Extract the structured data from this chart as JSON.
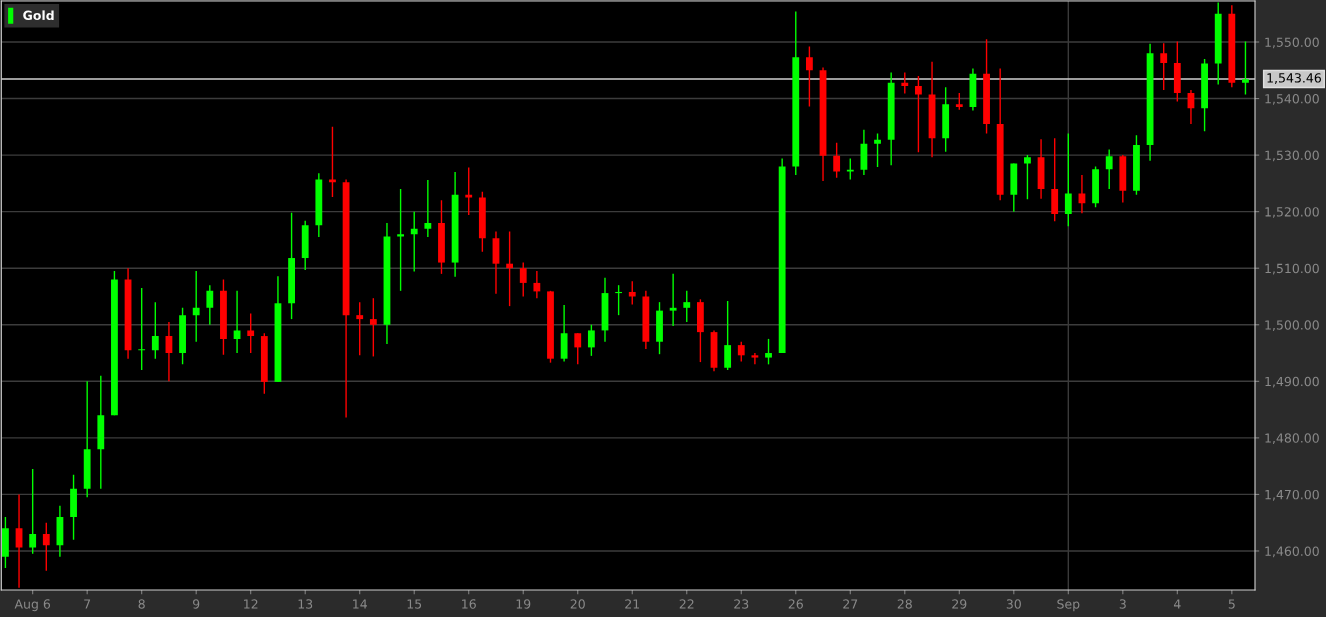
{
  "chart_data": {
    "type": "candlestick",
    "categories": [
      null,
      null,
      "Aug 6",
      null,
      null,
      null,
      "7",
      null,
      null,
      null,
      "8",
      null,
      null,
      null,
      "9",
      null,
      null,
      null,
      "12",
      null,
      null,
      null,
      "13",
      null,
      null,
      null,
      "14",
      null,
      null,
      null,
      "15",
      null,
      null,
      null,
      "16",
      null,
      null,
      null,
      "19",
      null,
      null,
      null,
      "20",
      null,
      null,
      null,
      "21",
      null,
      null,
      null,
      "22",
      null,
      null,
      null,
      "23",
      null,
      null,
      null,
      "26",
      null,
      null,
      null,
      "27",
      null,
      null,
      null,
      "28",
      null,
      null,
      null,
      "29",
      null,
      null,
      null,
      "30",
      null,
      null,
      null,
      "Sep",
      null,
      null,
      null,
      "3",
      null,
      null,
      null,
      "4",
      null,
      null,
      null,
      "5",
      null
    ],
    "series": [
      {
        "name": "Gold",
        "color": "#00ff00",
        "ohlc": [
          [
            1459,
            1466,
            1457,
            1464
          ],
          [
            1464,
            1470,
            1453.5,
            1460.6
          ],
          [
            1460.6,
            1474.5,
            1459.5,
            1463
          ],
          [
            1463,
            1465,
            1456.5,
            1461
          ],
          [
            1461,
            1468,
            1459,
            1466
          ],
          [
            1466,
            1473.5,
            1462,
            1471
          ],
          [
            1471,
            1490,
            1469.5,
            1478
          ],
          [
            1478,
            1491,
            1471,
            1484
          ],
          [
            1484,
            1509.5,
            1484,
            1508
          ],
          [
            1508,
            1510,
            1494,
            1495.5
          ],
          [
            1495.5,
            1506.5,
            1492,
            1495.5
          ],
          [
            1495.5,
            1504,
            1494,
            1498
          ],
          [
            1498,
            1500.5,
            1490,
            1495
          ],
          [
            1495,
            1503,
            1493,
            1501.7
          ],
          [
            1501.7,
            1509.5,
            1497,
            1503
          ],
          [
            1503,
            1507,
            1500,
            1506
          ],
          [
            1506,
            1508,
            1494.7,
            1497.5
          ],
          [
            1497.5,
            1506,
            1495,
            1499
          ],
          [
            1499,
            1502,
            1495,
            1498
          ],
          [
            1498,
            1498.5,
            1487.8,
            1489.9
          ],
          [
            1489.9,
            1508.6,
            1489.9,
            1503.8
          ],
          [
            1503.8,
            1519.8,
            1501,
            1511.8
          ],
          [
            1511.8,
            1518.4,
            1509.7,
            1517.6
          ],
          [
            1517.6,
            1526.8,
            1515.5,
            1525.7
          ],
          [
            1525.7,
            1535,
            1522.6,
            1525.2
          ],
          [
            1525.2,
            1525.7,
            1483.6,
            1501.7
          ],
          [
            1501.7,
            1504,
            1494.6,
            1501
          ],
          [
            1501,
            1504.7,
            1494.4,
            1500
          ],
          [
            1500,
            1518,
            1496.6,
            1515.6
          ],
          [
            1515.6,
            1524,
            1506,
            1516
          ],
          [
            1516,
            1520,
            1509.4,
            1517
          ],
          [
            1517,
            1525.6,
            1515.5,
            1518
          ],
          [
            1518,
            1522,
            1509,
            1511
          ],
          [
            1511,
            1527,
            1508.5,
            1523
          ],
          [
            1523,
            1527.8,
            1519.4,
            1522.5
          ],
          [
            1522.5,
            1523.5,
            1512.9,
            1515.3
          ],
          [
            1515.3,
            1516.5,
            1505.5,
            1510.8
          ],
          [
            1510.8,
            1516.5,
            1503.3,
            1510
          ],
          [
            1510,
            1511,
            1505,
            1507.4
          ],
          [
            1507.4,
            1509.5,
            1504.7,
            1505.9
          ],
          [
            1505.9,
            1506,
            1493.3,
            1494
          ],
          [
            1494,
            1503.5,
            1493.5,
            1498.5
          ],
          [
            1498.5,
            1498.5,
            1493,
            1496
          ],
          [
            1496,
            1500,
            1494.5,
            1499
          ],
          [
            1499,
            1508.3,
            1497,
            1505.6
          ],
          [
            1505.6,
            1507,
            1501.7,
            1505.8
          ],
          [
            1505.8,
            1507.7,
            1503.6,
            1505
          ],
          [
            1505,
            1506,
            1495.7,
            1497
          ],
          [
            1497,
            1504,
            1494.8,
            1502.5
          ],
          [
            1502.5,
            1509,
            1499.8,
            1503
          ],
          [
            1503,
            1506,
            1500.5,
            1504
          ],
          [
            1504,
            1504.5,
            1493.4,
            1498.7
          ],
          [
            1498.7,
            1499,
            1491.8,
            1492.4
          ],
          [
            1492.4,
            1504.2,
            1492,
            1496.4
          ],
          [
            1496.4,
            1497,
            1493.5,
            1494.6
          ],
          [
            1494.6,
            1495,
            1493,
            1494.2
          ],
          [
            1494.2,
            1497.5,
            1493,
            1495
          ],
          [
            1495,
            1529.4,
            1495,
            1528
          ],
          [
            1528,
            1555.4,
            1526.5,
            1547.3
          ],
          [
            1547.3,
            1549.2,
            1538.6,
            1545
          ],
          [
            1545,
            1545.5,
            1525.4,
            1529.9
          ],
          [
            1529.9,
            1532.2,
            1526,
            1527.1
          ],
          [
            1527.1,
            1529.4,
            1525.7,
            1527.4
          ],
          [
            1527.4,
            1534.5,
            1526.5,
            1532
          ],
          [
            1532,
            1533.8,
            1527.9,
            1532.7
          ],
          [
            1532.7,
            1544.6,
            1528.2,
            1542.8
          ],
          [
            1542.8,
            1544.6,
            1540.9,
            1542.2
          ],
          [
            1542.2,
            1544,
            1530.5,
            1540.7
          ],
          [
            1540.7,
            1546.5,
            1529.6,
            1533
          ],
          [
            1533,
            1542,
            1530.6,
            1539
          ],
          [
            1539,
            1541,
            1538,
            1538.5
          ],
          [
            1538.5,
            1545.3,
            1537.9,
            1544.4
          ],
          [
            1544.4,
            1550.5,
            1533.8,
            1535.5
          ],
          [
            1535.5,
            1545.3,
            1522,
            1523
          ],
          [
            1523,
            1528.5,
            1520,
            1528.5
          ],
          [
            1528.5,
            1530,
            1522.2,
            1529.6
          ],
          [
            1529.6,
            1532.8,
            1522.3,
            1524
          ],
          [
            1524,
            1533,
            1518.3,
            1519.6
          ],
          [
            1519.6,
            1533.8,
            1517.4,
            1523.2
          ],
          [
            1523.2,
            1526.5,
            1519.7,
            1521.5
          ],
          [
            1521.5,
            1528,
            1520.8,
            1527.5
          ],
          [
            1527.5,
            1531,
            1524,
            1529.8
          ],
          [
            1529.8,
            1530,
            1521.6,
            1523.7
          ],
          [
            1523.7,
            1533.5,
            1523,
            1531.8
          ],
          [
            1531.8,
            1549.7,
            1529,
            1548
          ],
          [
            1548,
            1549.8,
            1541.5,
            1546.3
          ],
          [
            1546.3,
            1550.1,
            1539.5,
            1541
          ],
          [
            1541,
            1541.5,
            1535.5,
            1538.3
          ],
          [
            1538.3,
            1547,
            1534.2,
            1546.2
          ],
          [
            1546.2,
            1557,
            1542.5,
            1555
          ],
          [
            1555,
            1556.5,
            1542,
            1542.8
          ],
          [
            1542.8,
            1550.1,
            1540.7,
            1543.4
          ]
        ],
        "colors": [
          "#00ff00",
          "#ff0000",
          "#00ff00",
          "#ff0000",
          "#00ff00",
          "#00ff00",
          "#00ff00",
          "#00ff00",
          "#00ff00",
          "#ff0000",
          "#00ff00",
          "#00ff00",
          "#ff0000",
          "#00ff00",
          "#00ff00",
          "#00ff00",
          "#ff0000",
          "#00ff00",
          "#ff0000",
          "#ff0000",
          "#00ff00",
          "#00ff00",
          "#00ff00",
          "#00ff00",
          "#ff0000",
          "#ff0000",
          "#ff0000",
          "#ff0000",
          "#00ff00",
          "#00ff00",
          "#00ff00",
          "#00ff00",
          "#ff0000",
          "#00ff00",
          "#ff0000",
          "#ff0000",
          "#ff0000",
          "#ff0000",
          "#ff0000",
          "#ff0000",
          "#ff0000",
          "#00ff00",
          "#ff0000",
          "#00ff00",
          "#00ff00",
          "#00ff00",
          "#ff0000",
          "#ff0000",
          "#00ff00",
          "#00ff00",
          "#00ff00",
          "#ff0000",
          "#ff0000",
          "#00ff00",
          "#ff0000",
          "#ff0000",
          "#00ff00",
          "#00ff00",
          "#00ff00",
          "#ff0000",
          "#ff0000",
          "#ff0000",
          "#00ff00",
          "#00ff00",
          "#00ff00",
          "#00ff00",
          "#ff0000",
          "#ff0000",
          "#ff0000",
          "#00ff00",
          "#ff0000",
          "#00ff00",
          "#ff0000",
          "#ff0000",
          "#00ff00",
          "#00ff00",
          "#ff0000",
          "#ff0000",
          "#00ff00",
          "#ff0000",
          "#00ff00",
          "#00ff00",
          "#ff0000",
          "#00ff00",
          "#00ff00",
          "#ff0000",
          "#ff0000",
          "#ff0000",
          "#00ff00",
          "#00ff00",
          "#ff0000",
          "#00ff00"
        ]
      }
    ],
    "ylim": [
      1453.1,
      1557.25
    ],
    "yticks": [
      {
        "value": 1460,
        "label": "1,460.00"
      },
      {
        "value": 1470,
        "label": "1,470.00"
      },
      {
        "value": 1480,
        "label": "1,480.00"
      },
      {
        "value": 1490,
        "label": "1,490.00"
      },
      {
        "value": 1500,
        "label": "1,500.00"
      },
      {
        "value": 1510,
        "label": "1,510.00"
      },
      {
        "value": 1520,
        "label": "1,520.00"
      },
      {
        "value": 1530,
        "label": "1,530.00"
      },
      {
        "value": 1540,
        "label": "1,540.00"
      },
      {
        "value": 1550,
        "label": "1,550.00"
      }
    ],
    "ref_lines": [
      {
        "axis": "y",
        "value": 1543.46,
        "label": "1,543.46",
        "color": "#d0d0d0"
      },
      {
        "axis": "x",
        "value": "Sep",
        "color": "#3a3a3a"
      }
    ],
    "grid": "y",
    "legend": "top left"
  }
}
